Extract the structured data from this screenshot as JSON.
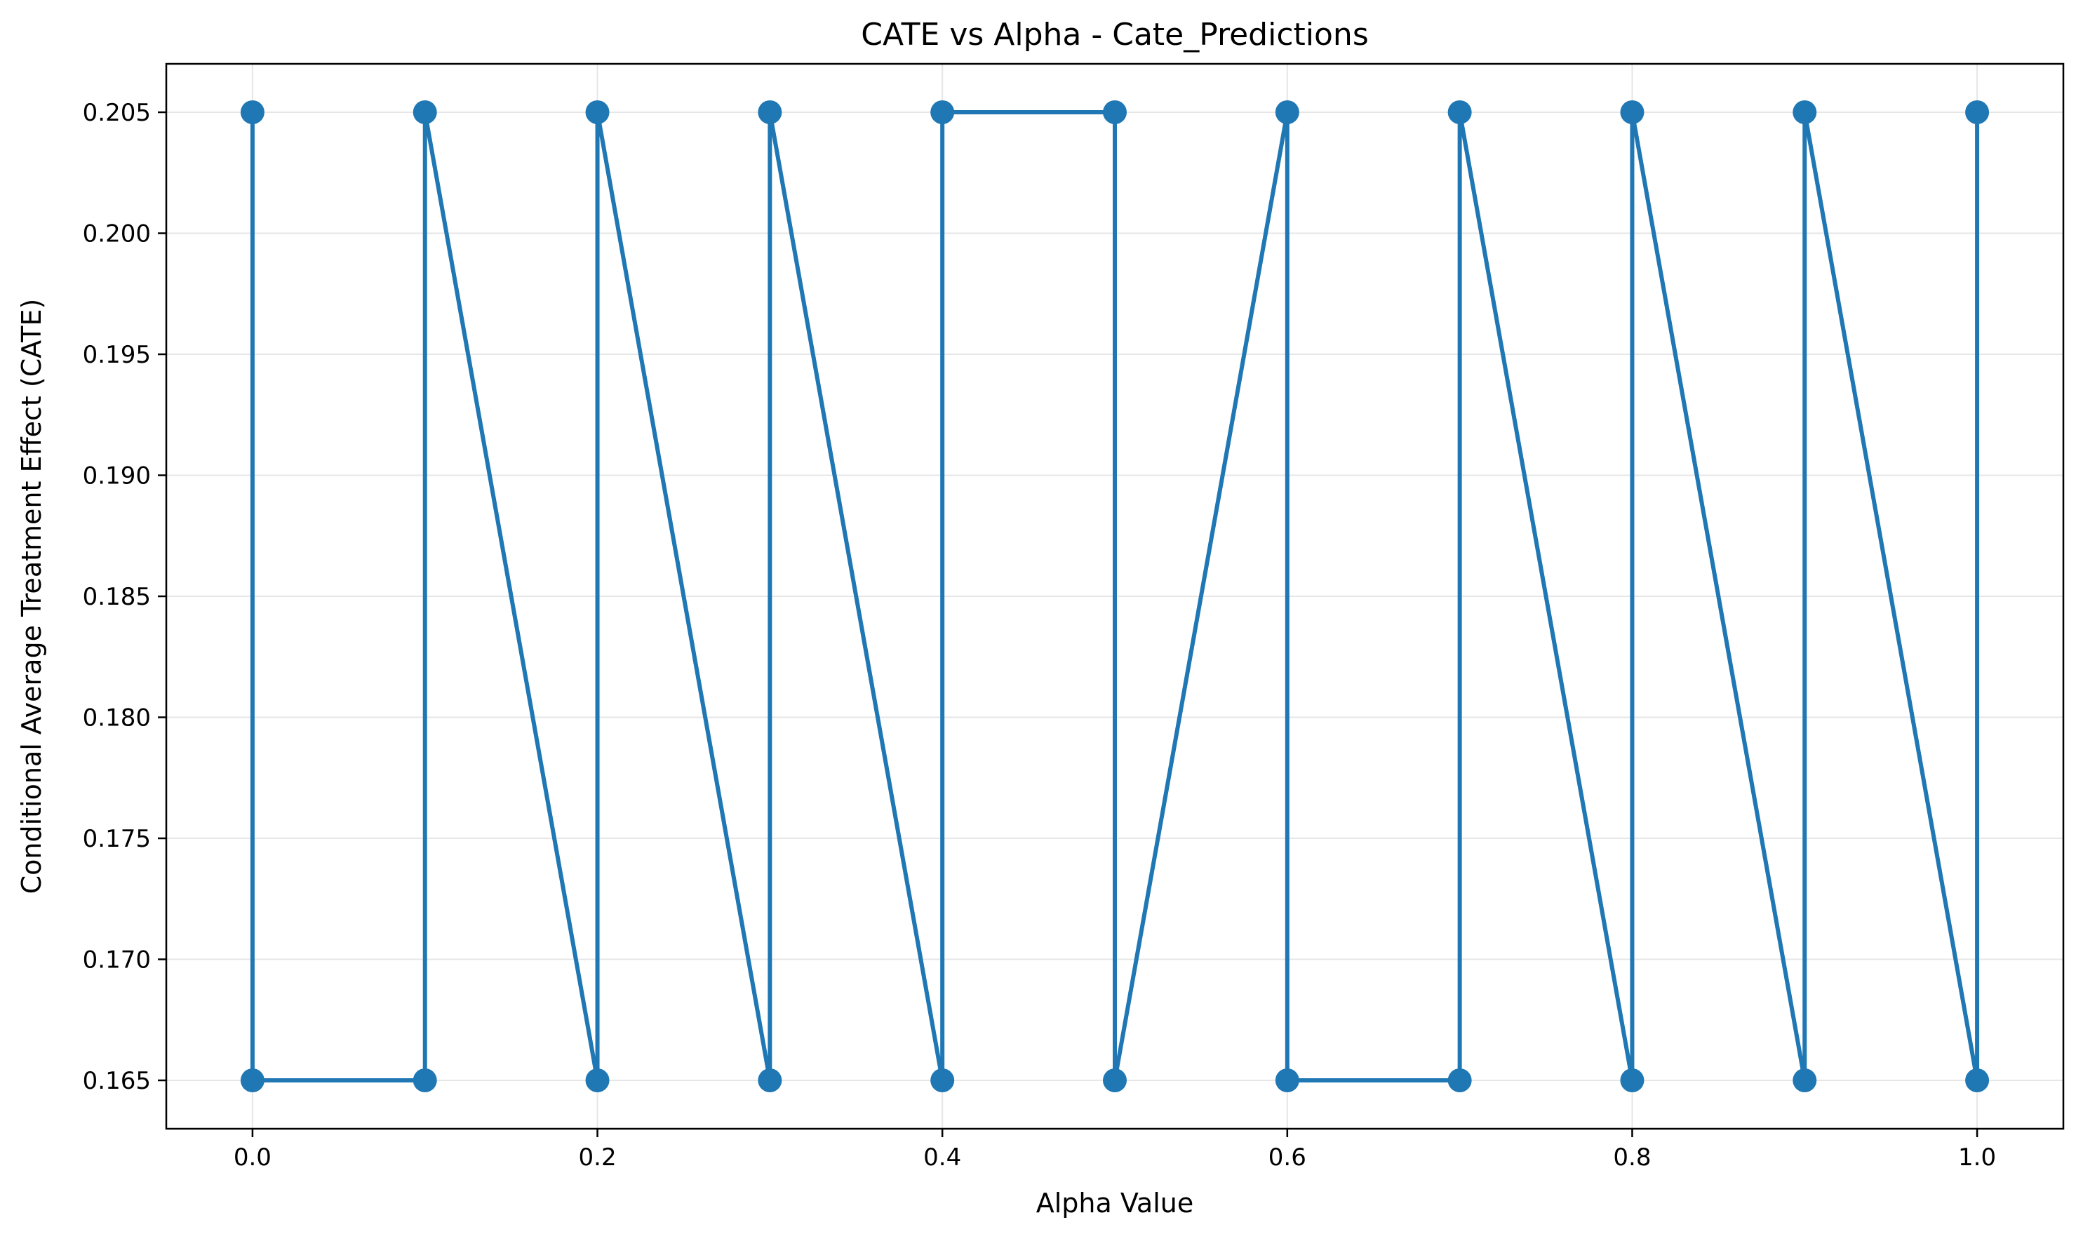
{
  "chart_data": {
    "type": "line",
    "title": "CATE vs Alpha - Cate_Predictions",
    "xlabel": "Alpha Value",
    "ylabel": "Conditional Average Treatment Effect (CATE)",
    "xlim": [
      -0.05,
      1.05
    ],
    "ylim": [
      0.163,
      0.207
    ],
    "x_ticks": [
      0.0,
      0.2,
      0.4,
      0.6,
      0.8,
      1.0
    ],
    "x_tick_labels": [
      "0.0",
      "0.2",
      "0.4",
      "0.6",
      "0.8",
      "1.0"
    ],
    "y_ticks": [
      0.165,
      0.17,
      0.175,
      0.18,
      0.185,
      0.19,
      0.195,
      0.2,
      0.205
    ],
    "y_tick_labels": [
      "0.165",
      "0.170",
      "0.175",
      "0.180",
      "0.185",
      "0.190",
      "0.195",
      "0.200",
      "0.205"
    ],
    "grid": true,
    "series": [
      {
        "color": "#1f77b4",
        "marker": "circle",
        "x": [
          0.0,
          0.0,
          0.1,
          0.1,
          0.2,
          0.2,
          0.3,
          0.3,
          0.4,
          0.4,
          0.5,
          0.5,
          0.6,
          0.6,
          0.7,
          0.7,
          0.8,
          0.8,
          0.9,
          0.9,
          1.0,
          1.0
        ],
        "y": [
          0.205,
          0.165,
          0.165,
          0.205,
          0.165,
          0.205,
          0.165,
          0.205,
          0.165,
          0.205,
          0.205,
          0.165,
          0.205,
          0.165,
          0.165,
          0.205,
          0.165,
          0.205,
          0.165,
          0.205,
          0.165,
          0.205
        ]
      }
    ]
  }
}
